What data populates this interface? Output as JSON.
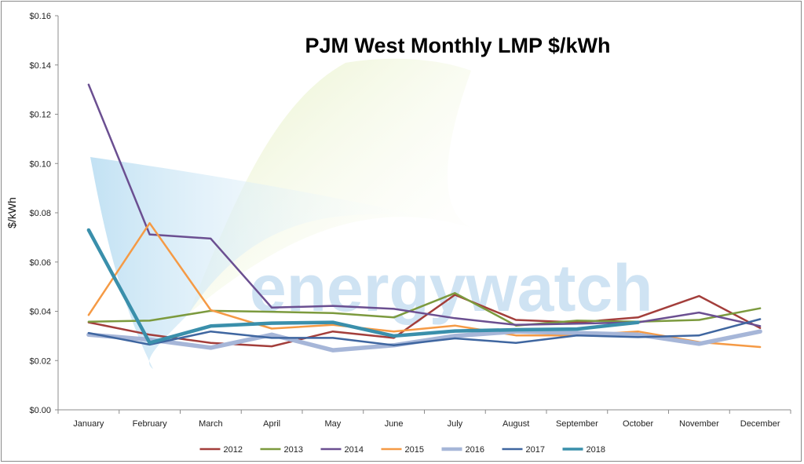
{
  "chart_data": {
    "type": "line",
    "title": "PJM West Monthly LMP $/kWh",
    "ylabel": "$/kWh",
    "xlabel": "",
    "ylim": [
      0,
      0.16
    ],
    "yticks": [
      0,
      0.02,
      0.04,
      0.06,
      0.08,
      0.1,
      0.12,
      0.14,
      0.16
    ],
    "ytick_labels": [
      "$0.00",
      "$0.02",
      "$0.04",
      "$0.06",
      "$0.08",
      "$0.10",
      "$0.12",
      "$0.14",
      "$0.16"
    ],
    "categories": [
      "January",
      "February",
      "March",
      "April",
      "May",
      "June",
      "July",
      "August",
      "September",
      "October",
      "November",
      "December"
    ],
    "legend_position": "bottom",
    "grid": false,
    "watermark": "energywatch",
    "series": [
      {
        "name": "2012",
        "color": "#a33e3b",
        "width": 2.5,
        "values": [
          0.0355,
          0.0305,
          0.0272,
          0.0258,
          0.0318,
          0.0292,
          0.0467,
          0.0365,
          0.0355,
          0.0375,
          0.0462,
          0.0332
        ]
      },
      {
        "name": "2013",
        "color": "#7c9a3e",
        "width": 2.5,
        "values": [
          0.0358,
          0.0362,
          0.0402,
          0.0398,
          0.0393,
          0.0375,
          0.0474,
          0.0342,
          0.0362,
          0.0358,
          0.0365,
          0.0412
        ]
      },
      {
        "name": "2014",
        "color": "#6b4f91",
        "width": 2.5,
        "values": [
          0.132,
          0.0712,
          0.0695,
          0.0415,
          0.0422,
          0.041,
          0.0372,
          0.0345,
          0.035,
          0.0355,
          0.0395,
          0.034
        ]
      },
      {
        "name": "2015",
        "color": "#f59a45",
        "width": 2.5,
        "values": [
          0.0385,
          0.0758,
          0.0405,
          0.033,
          0.0345,
          0.0318,
          0.0342,
          0.0302,
          0.0302,
          0.0318,
          0.0275,
          0.0255
        ]
      },
      {
        "name": "2016",
        "color": "#a6b6d8",
        "width": 5.5,
        "values": [
          0.0305,
          0.0285,
          0.0252,
          0.0305,
          0.0242,
          0.0262,
          0.03,
          0.0318,
          0.0312,
          0.0305,
          0.0268,
          0.0318
        ]
      },
      {
        "name": "2017",
        "color": "#3f66a0",
        "width": 2.5,
        "values": [
          0.0312,
          0.0265,
          0.0318,
          0.0292,
          0.0292,
          0.0262,
          0.029,
          0.0272,
          0.0302,
          0.0295,
          0.0302,
          0.0368
        ]
      },
      {
        "name": "2018",
        "color": "#3a8fab",
        "width": 4.5,
        "values": [
          0.073,
          0.0272,
          0.034,
          0.0352,
          0.0355,
          0.03,
          0.032,
          0.0325,
          0.0328,
          0.0355,
          null,
          null
        ]
      }
    ]
  }
}
